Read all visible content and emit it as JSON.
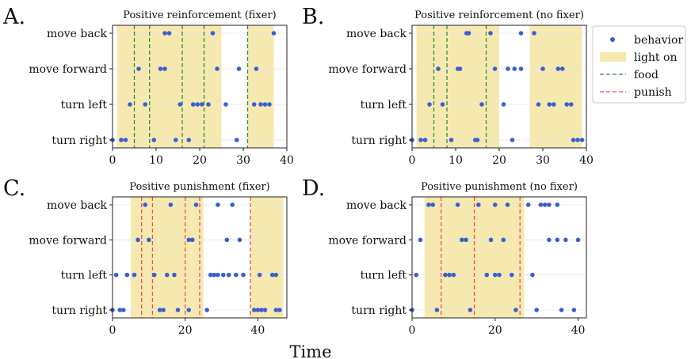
{
  "figure": {
    "xlabel": "Time",
    "legend": {
      "placement": "right",
      "entries": [
        {
          "label": "behavior",
          "kind": "dot"
        },
        {
          "label": "light on",
          "kind": "patch"
        },
        {
          "label": "food",
          "kind": "dash"
        },
        {
          "label": "punish",
          "kind": "dash"
        }
      ]
    },
    "colors": {
      "behavior": "#3b5fcf",
      "light": "#f6e9b0",
      "food": "#2e8b3d",
      "punish": "#f05050"
    }
  },
  "chart_data": [
    {
      "type": "scatter",
      "letter": "A.",
      "title": "Positive reinforcement (fixer)",
      "categories": [
        "turn right",
        "turn left",
        "move forward",
        "move back"
      ],
      "xlim": [
        0,
        40
      ],
      "xticks": [
        0,
        10,
        20,
        30,
        40
      ],
      "light_on": [
        [
          1,
          25
        ],
        [
          31,
          37
        ]
      ],
      "events": {
        "type": "food",
        "times": [
          5,
          8.5,
          16,
          21,
          31
        ]
      },
      "points": {
        "move back": [
          12,
          13,
          23,
          37
        ],
        "move forward": [
          6,
          11,
          12,
          24,
          29,
          33
        ],
        "turn left": [
          4,
          7.5,
          15.5,
          18.5,
          19.5,
          20.5,
          22,
          26,
          32.5,
          34,
          35,
          36
        ],
        "turn right": [
          0,
          2,
          3,
          9.5,
          14.5,
          17.5,
          28.5
        ]
      }
    },
    {
      "type": "scatter",
      "letter": "B.",
      "title": "Positive reinforcement (no fixer)",
      "categories": [
        "turn right",
        "turn left",
        "move forward",
        "move back"
      ],
      "xlim": [
        0,
        40
      ],
      "xticks": [
        0,
        10,
        20,
        30,
        40
      ],
      "light_on": [
        [
          1,
          20
        ],
        [
          27,
          39
        ]
      ],
      "events": {
        "type": "food",
        "times": [
          5,
          8,
          17
        ]
      },
      "points": {
        "move back": [
          12.5,
          13,
          18,
          25,
          28
        ],
        "move forward": [
          6,
          10.5,
          11,
          19,
          22,
          23.5,
          25,
          30,
          33.5,
          34.5
        ],
        "turn left": [
          4,
          7,
          16,
          21,
          29,
          31.5,
          32.5,
          35.5,
          36.5
        ],
        "turn right": [
          0,
          2,
          3,
          9,
          14.5,
          15,
          23,
          37,
          38,
          39
        ]
      }
    },
    {
      "type": "scatter",
      "letter": "C.",
      "title": "Positive punishment (fixer)",
      "categories": [
        "turn right",
        "turn left",
        "move forward",
        "move back"
      ],
      "xlim": [
        0,
        48
      ],
      "xticks": [
        0,
        20,
        40
      ],
      "light_on": [
        [
          5,
          25
        ],
        [
          38,
          47
        ]
      ],
      "events": {
        "type": "punish",
        "times": [
          8,
          11,
          20,
          24,
          38
        ]
      },
      "points": {
        "move back": [
          9,
          16,
          23,
          29,
          33
        ],
        "move forward": [
          7,
          10,
          21,
          22,
          31.5,
          35
        ],
        "turn left": [
          1,
          4,
          6,
          11.5,
          15,
          17,
          27,
          28,
          29,
          30.5,
          32,
          34,
          36,
          40.5,
          44,
          45
        ],
        "turn right": [
          0,
          2,
          3,
          13,
          14,
          18,
          21,
          26,
          39,
          40,
          41,
          42,
          45,
          46
        ]
      }
    },
    {
      "type": "scatter",
      "letter": "D.",
      "title": "Positive punishment (no fixer)",
      "categories": [
        "turn right",
        "turn left",
        "move forward",
        "move back"
      ],
      "xlim": [
        0,
        42
      ],
      "xticks": [
        0,
        20,
        40
      ],
      "light_on": [
        [
          3,
          27
        ]
      ],
      "events": {
        "type": "punish",
        "times": [
          7,
          15,
          26
        ]
      },
      "points": {
        "move back": [
          4,
          5,
          11,
          16,
          20,
          23,
          28,
          31,
          32,
          33,
          35
        ],
        "move forward": [
          2,
          12,
          13,
          19,
          22,
          33,
          35,
          37,
          40
        ],
        "turn left": [
          1,
          8,
          9,
          10,
          18,
          20,
          21,
          24,
          29
        ],
        "turn right": [
          0,
          6,
          14,
          25,
          30,
          36,
          39
        ]
      }
    }
  ]
}
